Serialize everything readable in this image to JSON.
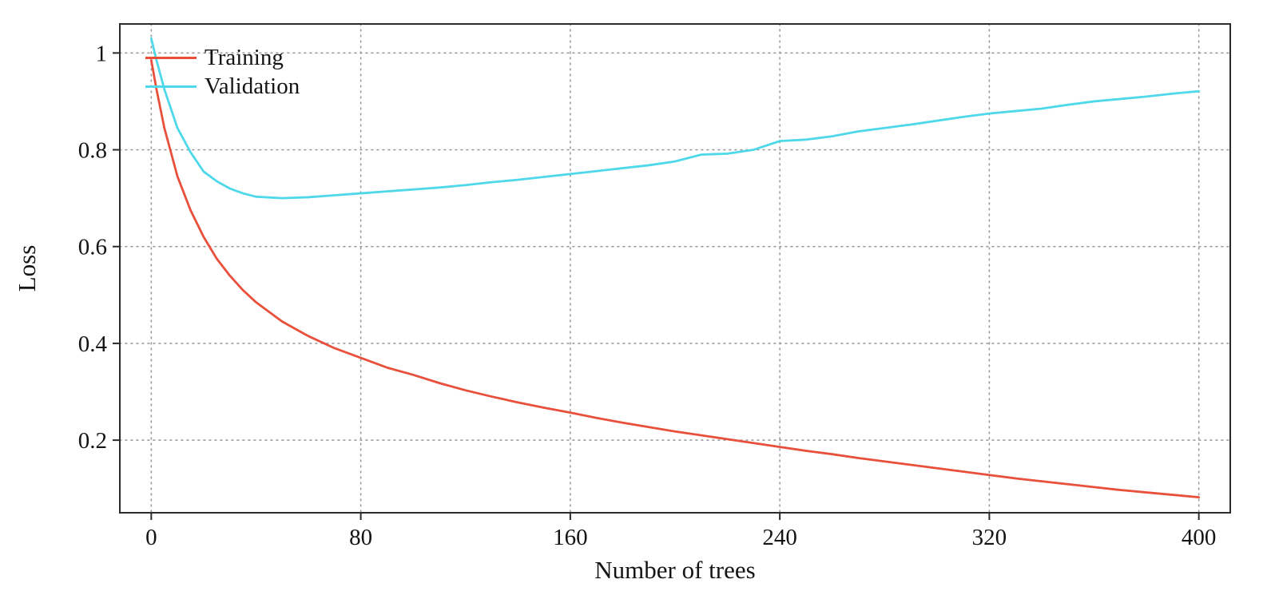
{
  "chart_data": {
    "type": "line",
    "title": "",
    "xlabel": "Number of trees",
    "ylabel": "Loss",
    "xlim": [
      -12,
      412
    ],
    "ylim": [
      0.05,
      1.06
    ],
    "grid": "dotted",
    "legend_position": "top-left",
    "x_ticks": [
      0,
      80,
      160,
      240,
      320,
      400
    ],
    "x_tick_labels": [
      "0",
      "80",
      "160",
      "240",
      "320",
      "400"
    ],
    "y_ticks": [
      0.2,
      0.4,
      0.6,
      0.8,
      1
    ],
    "y_tick_labels": [
      "0.2",
      "0.4",
      "0.6",
      "0.8",
      "1"
    ],
    "x": [
      0,
      2,
      5,
      10,
      15,
      20,
      25,
      30,
      35,
      40,
      50,
      60,
      70,
      80,
      90,
      100,
      110,
      120,
      130,
      140,
      150,
      160,
      170,
      180,
      190,
      200,
      210,
      220,
      230,
      240,
      250,
      260,
      270,
      280,
      290,
      300,
      310,
      320,
      330,
      340,
      350,
      360,
      370,
      380,
      390,
      400
    ],
    "series": [
      {
        "name": "Training",
        "color": "#e8503c",
        "y": [
          0.985,
          0.925,
          0.845,
          0.745,
          0.675,
          0.62,
          0.575,
          0.54,
          0.51,
          0.485,
          0.445,
          0.415,
          0.39,
          0.37,
          0.35,
          0.335,
          0.318,
          0.303,
          0.29,
          0.278,
          0.267,
          0.257,
          0.246,
          0.236,
          0.227,
          0.218,
          0.21,
          0.202,
          0.194,
          0.186,
          0.178,
          0.171,
          0.163,
          0.156,
          0.149,
          0.142,
          0.135,
          0.128,
          0.121,
          0.115,
          0.109,
          0.103,
          0.097,
          0.092,
          0.087,
          0.082
        ]
      },
      {
        "name": "Validation",
        "color": "#4ed8ea",
        "y": [
          1.03,
          0.985,
          0.925,
          0.845,
          0.795,
          0.755,
          0.735,
          0.72,
          0.71,
          0.703,
          0.7,
          0.702,
          0.706,
          0.71,
          0.714,
          0.718,
          0.722,
          0.727,
          0.733,
          0.738,
          0.744,
          0.75,
          0.756,
          0.762,
          0.768,
          0.776,
          0.79,
          0.792,
          0.8,
          0.818,
          0.821,
          0.828,
          0.838,
          0.845,
          0.852,
          0.86,
          0.868,
          0.875,
          0.88,
          0.885,
          0.893,
          0.9,
          0.905,
          0.91,
          0.916,
          0.921
        ]
      }
    ]
  }
}
